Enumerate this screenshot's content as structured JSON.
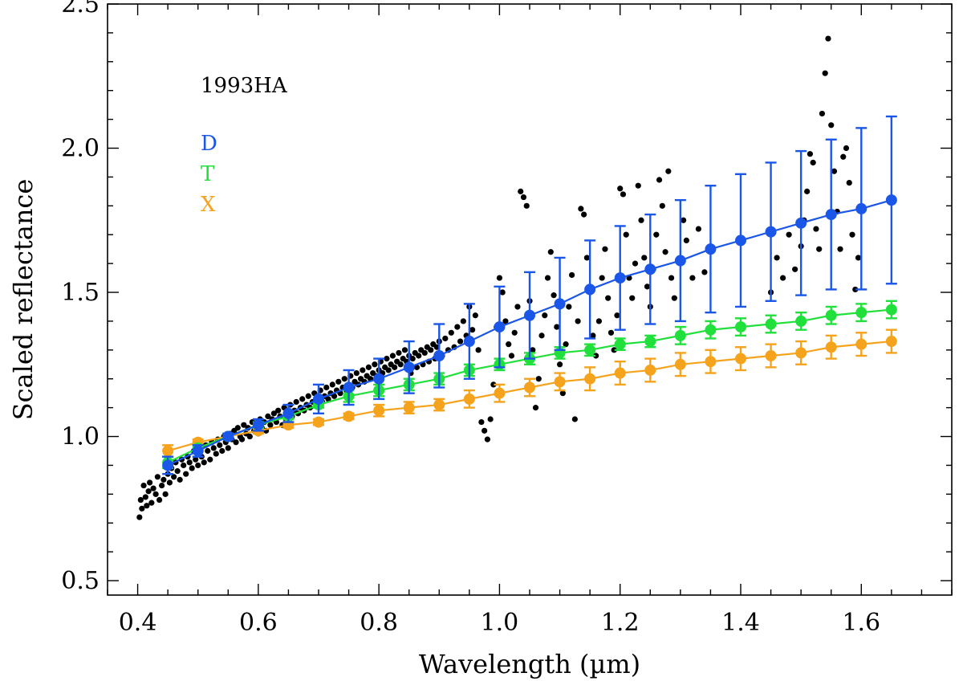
{
  "chart_data": {
    "type": "scatter",
    "title": "",
    "xlabel": "Wavelength (µm)",
    "ylabel": "Scaled reflectance",
    "xlim": [
      0.35,
      1.75
    ],
    "ylim": [
      0.45,
      2.5
    ],
    "x_ticks": [
      0.4,
      0.6,
      0.8,
      1.0,
      1.2,
      1.4,
      1.6
    ],
    "x_tick_labels": [
      "0.4",
      "0.6",
      "0.8",
      "1.0",
      "1.2",
      "1.4",
      "1.6"
    ],
    "y_ticks": [
      0.5,
      1.0,
      1.5,
      2.0,
      2.5
    ],
    "y_tick_labels": [
      "0.5",
      "1.0",
      "1.5",
      "2.0",
      "2.5"
    ],
    "object_label": "1993HA",
    "series": [
      {
        "name": "D",
        "color": "#1a56e8",
        "x": [
          0.45,
          0.5,
          0.55,
          0.6,
          0.65,
          0.7,
          0.75,
          0.8,
          0.85,
          0.9,
          0.95,
          1.0,
          1.05,
          1.1,
          1.15,
          1.2,
          1.25,
          1.3,
          1.35,
          1.4,
          1.45,
          1.5,
          1.55,
          1.6,
          1.65
        ],
        "y": [
          0.9,
          0.95,
          1.0,
          1.04,
          1.08,
          1.13,
          1.17,
          1.2,
          1.24,
          1.28,
          1.33,
          1.38,
          1.42,
          1.46,
          1.51,
          1.55,
          1.58,
          1.61,
          1.65,
          1.68,
          1.71,
          1.74,
          1.77,
          1.79,
          1.82
        ],
        "err": [
          0.03,
          0.02,
          0.01,
          0.02,
          0.03,
          0.05,
          0.06,
          0.07,
          0.09,
          0.11,
          0.13,
          0.14,
          0.15,
          0.16,
          0.17,
          0.18,
          0.19,
          0.21,
          0.22,
          0.23,
          0.24,
          0.25,
          0.26,
          0.28,
          0.29
        ]
      },
      {
        "name": "T",
        "color": "#22e03c",
        "x": [
          0.45,
          0.5,
          0.55,
          0.6,
          0.65,
          0.7,
          0.75,
          0.8,
          0.85,
          0.9,
          0.95,
          1.0,
          1.05,
          1.1,
          1.15,
          1.2,
          1.25,
          1.3,
          1.35,
          1.4,
          1.45,
          1.5,
          1.55,
          1.6,
          1.65
        ],
        "y": [
          0.91,
          0.96,
          1.0,
          1.04,
          1.07,
          1.11,
          1.14,
          1.16,
          1.18,
          1.2,
          1.23,
          1.25,
          1.27,
          1.29,
          1.3,
          1.32,
          1.33,
          1.35,
          1.37,
          1.38,
          1.39,
          1.4,
          1.42,
          1.43,
          1.44
        ],
        "err": [
          0.02,
          0.01,
          0.01,
          0.01,
          0.01,
          0.01,
          0.02,
          0.02,
          0.02,
          0.02,
          0.02,
          0.02,
          0.02,
          0.02,
          0.02,
          0.02,
          0.02,
          0.03,
          0.03,
          0.03,
          0.03,
          0.03,
          0.03,
          0.03,
          0.03
        ]
      },
      {
        "name": "X",
        "color": "#f5a31c",
        "x": [
          0.45,
          0.5,
          0.55,
          0.6,
          0.65,
          0.7,
          0.75,
          0.8,
          0.85,
          0.9,
          0.95,
          1.0,
          1.05,
          1.1,
          1.15,
          1.2,
          1.25,
          1.3,
          1.35,
          1.4,
          1.45,
          1.5,
          1.55,
          1.6,
          1.65
        ],
        "y": [
          0.95,
          0.98,
          1.0,
          1.02,
          1.04,
          1.05,
          1.07,
          1.09,
          1.1,
          1.11,
          1.13,
          1.15,
          1.17,
          1.19,
          1.2,
          1.22,
          1.23,
          1.25,
          1.26,
          1.27,
          1.28,
          1.29,
          1.31,
          1.32,
          1.33
        ],
        "err": [
          0.02,
          0.01,
          0.01,
          0.01,
          0.01,
          0.01,
          0.01,
          0.02,
          0.02,
          0.02,
          0.03,
          0.03,
          0.03,
          0.03,
          0.04,
          0.04,
          0.04,
          0.04,
          0.04,
          0.04,
          0.04,
          0.04,
          0.04,
          0.04,
          0.04
        ]
      }
    ],
    "observations": {
      "name": "1993HA",
      "color": "#000000",
      "points": [
        [
          0.403,
          0.72
        ],
        [
          0.405,
          0.78
        ],
        [
          0.407,
          0.75
        ],
        [
          0.41,
          0.83
        ],
        [
          0.413,
          0.79
        ],
        [
          0.415,
          0.76
        ],
        [
          0.418,
          0.81
        ],
        [
          0.42,
          0.84
        ],
        [
          0.423,
          0.77
        ],
        [
          0.426,
          0.82
        ],
        [
          0.43,
          0.8
        ],
        [
          0.433,
          0.86
        ],
        [
          0.436,
          0.78
        ],
        [
          0.44,
          0.83
        ],
        [
          0.443,
          0.85
        ],
        [
          0.446,
          0.8
        ],
        [
          0.45,
          0.87
        ],
        [
          0.453,
          0.84
        ],
        [
          0.456,
          0.89
        ],
        [
          0.46,
          0.86
        ],
        [
          0.463,
          0.91
        ],
        [
          0.466,
          0.88
        ],
        [
          0.47,
          0.85
        ],
        [
          0.473,
          0.92
        ],
        [
          0.476,
          0.9
        ],
        [
          0.48,
          0.87
        ],
        [
          0.483,
          0.93
        ],
        [
          0.486,
          0.91
        ],
        [
          0.49,
          0.89
        ],
        [
          0.493,
          0.95
        ],
        [
          0.496,
          0.92
        ],
        [
          0.5,
          0.9
        ],
        [
          0.503,
          0.96
        ],
        [
          0.506,
          0.93
        ],
        [
          0.51,
          0.91
        ],
        [
          0.513,
          0.97
        ],
        [
          0.516,
          0.95
        ],
        [
          0.52,
          0.92
        ],
        [
          0.523,
          0.98
        ],
        [
          0.526,
          0.96
        ],
        [
          0.53,
          0.94
        ],
        [
          0.533,
          0.99
        ],
        [
          0.536,
          0.97
        ],
        [
          0.54,
          0.95
        ],
        [
          0.543,
          1.0
        ],
        [
          0.546,
          0.98
        ],
        [
          0.55,
          0.96
        ],
        [
          0.553,
          1.01
        ],
        [
          0.556,
          0.99
        ],
        [
          0.56,
          1.02
        ],
        [
          0.563,
          0.98
        ],
        [
          0.566,
          1.03
        ],
        [
          0.57,
          1.0
        ],
        [
          0.573,
          0.99
        ],
        [
          0.576,
          1.04
        ],
        [
          0.58,
          1.01
        ],
        [
          0.583,
          1.03
        ],
        [
          0.586,
          1.0
        ],
        [
          0.59,
          1.05
        ],
        [
          0.593,
          1.02
        ],
        [
          0.596,
          1.04
        ],
        [
          0.6,
          1.01
        ],
        [
          0.603,
          1.06
        ],
        [
          0.606,
          1.03
        ],
        [
          0.61,
          1.05
        ],
        [
          0.613,
          1.02
        ],
        [
          0.616,
          1.07
        ],
        [
          0.62,
          1.04
        ],
        [
          0.623,
          1.06
        ],
        [
          0.626,
          1.08
        ],
        [
          0.63,
          1.05
        ],
        [
          0.633,
          1.09
        ],
        [
          0.636,
          1.07
        ],
        [
          0.64,
          1.04
        ],
        [
          0.643,
          1.1
        ],
        [
          0.646,
          1.06
        ],
        [
          0.65,
          1.08
        ],
        [
          0.653,
          1.11
        ],
        [
          0.656,
          1.07
        ],
        [
          0.66,
          1.09
        ],
        [
          0.663,
          1.12
        ],
        [
          0.666,
          1.08
        ],
        [
          0.67,
          1.1
        ],
        [
          0.673,
          1.13
        ],
        [
          0.676,
          1.09
        ],
        [
          0.68,
          1.11
        ],
        [
          0.683,
          1.14
        ],
        [
          0.686,
          1.1
        ],
        [
          0.69,
          1.12
        ],
        [
          0.693,
          1.15
        ],
        [
          0.696,
          1.11
        ],
        [
          0.7,
          1.13
        ],
        [
          0.703,
          1.16
        ],
        [
          0.706,
          1.12
        ],
        [
          0.71,
          1.14
        ],
        [
          0.713,
          1.17
        ],
        [
          0.716,
          1.13
        ],
        [
          0.72,
          1.15
        ],
        [
          0.723,
          1.18
        ],
        [
          0.726,
          1.14
        ],
        [
          0.73,
          1.16
        ],
        [
          0.733,
          1.19
        ],
        [
          0.736,
          1.15
        ],
        [
          0.74,
          1.17
        ],
        [
          0.743,
          1.2
        ],
        [
          0.746,
          1.16
        ],
        [
          0.75,
          1.18
        ],
        [
          0.753,
          1.21
        ],
        [
          0.756,
          1.17
        ],
        [
          0.76,
          1.19
        ],
        [
          0.763,
          1.22
        ],
        [
          0.766,
          1.18
        ],
        [
          0.77,
          1.2
        ],
        [
          0.773,
          1.23
        ],
        [
          0.776,
          1.19
        ],
        [
          0.78,
          1.21
        ],
        [
          0.783,
          1.24
        ],
        [
          0.786,
          1.2
        ],
        [
          0.79,
          1.22
        ],
        [
          0.793,
          1.25
        ],
        [
          0.796,
          1.21
        ],
        [
          0.8,
          1.23
        ],
        [
          0.803,
          1.26
        ],
        [
          0.806,
          1.22
        ],
        [
          0.81,
          1.24
        ],
        [
          0.813,
          1.27
        ],
        [
          0.816,
          1.23
        ],
        [
          0.82,
          1.25
        ],
        [
          0.823,
          1.28
        ],
        [
          0.826,
          1.24
        ],
        [
          0.83,
          1.26
        ],
        [
          0.833,
          1.29
        ],
        [
          0.836,
          1.25
        ],
        [
          0.84,
          1.27
        ],
        [
          0.843,
          1.3
        ],
        [
          0.846,
          1.26
        ],
        [
          0.85,
          1.28
        ],
        [
          0.853,
          1.22
        ],
        [
          0.856,
          1.27
        ],
        [
          0.86,
          1.29
        ],
        [
          0.863,
          1.24
        ],
        [
          0.866,
          1.28
        ],
        [
          0.87,
          1.3
        ],
        [
          0.873,
          1.25
        ],
        [
          0.876,
          1.29
        ],
        [
          0.88,
          1.31
        ],
        [
          0.883,
          1.26
        ],
        [
          0.886,
          1.3
        ],
        [
          0.89,
          1.32
        ],
        [
          0.893,
          1.27
        ],
        [
          0.896,
          1.31
        ],
        [
          0.9,
          1.33
        ],
        [
          0.905,
          1.28
        ],
        [
          0.91,
          1.34
        ],
        [
          0.915,
          1.3
        ],
        [
          0.92,
          1.36
        ],
        [
          0.925,
          1.31
        ],
        [
          0.93,
          1.38
        ],
        [
          0.935,
          1.33
        ],
        [
          0.94,
          1.4
        ],
        [
          0.945,
          1.35
        ],
        [
          0.95,
          1.45
        ],
        [
          0.955,
          1.37
        ],
        [
          0.96,
          1.42
        ],
        [
          0.965,
          1.3
        ],
        [
          0.97,
          1.05
        ],
        [
          0.975,
          1.02
        ],
        [
          0.98,
          0.99
        ],
        [
          0.985,
          1.06
        ],
        [
          0.99,
          1.18
        ],
        [
          0.995,
          1.38
        ],
        [
          1.0,
          1.55
        ],
        [
          1.005,
          1.5
        ],
        [
          1.01,
          1.4
        ],
        [
          1.015,
          1.32
        ],
        [
          1.02,
          1.28
        ],
        [
          1.025,
          1.36
        ],
        [
          1.03,
          1.45
        ],
        [
          1.035,
          1.85
        ],
        [
          1.04,
          1.83
        ],
        [
          1.045,
          1.8
        ],
        [
          1.05,
          1.47
        ],
        [
          1.055,
          1.3
        ],
        [
          1.06,
          1.1
        ],
        [
          1.065,
          1.2
        ],
        [
          1.07,
          1.35
        ],
        [
          1.075,
          1.42
        ],
        [
          1.08,
          1.55
        ],
        [
          1.085,
          1.64
        ],
        [
          1.09,
          1.49
        ],
        [
          1.095,
          1.38
        ],
        [
          1.1,
          1.25
        ],
        [
          1.105,
          1.15
        ],
        [
          1.11,
          1.32
        ],
        [
          1.115,
          1.45
        ],
        [
          1.12,
          1.56
        ],
        [
          1.125,
          1.06
        ],
        [
          1.13,
          1.4
        ],
        [
          1.135,
          1.79
        ],
        [
          1.14,
          1.77
        ],
        [
          1.145,
          1.62
        ],
        [
          1.15,
          1.5
        ],
        [
          1.155,
          1.35
        ],
        [
          1.16,
          1.28
        ],
        [
          1.165,
          1.4
        ],
        [
          1.17,
          1.55
        ],
        [
          1.175,
          1.65
        ],
        [
          1.18,
          1.48
        ],
        [
          1.185,
          1.36
        ],
        [
          1.19,
          1.3
        ],
        [
          1.195,
          1.42
        ],
        [
          1.2,
          1.86
        ],
        [
          1.205,
          1.84
        ],
        [
          1.21,
          1.7
        ],
        [
          1.215,
          1.55
        ],
        [
          1.22,
          1.48
        ],
        [
          1.225,
          1.6
        ],
        [
          1.23,
          1.87
        ],
        [
          1.235,
          1.75
        ],
        [
          1.24,
          1.62
        ],
        [
          1.245,
          1.52
        ],
        [
          1.25,
          1.45
        ],
        [
          1.255,
          1.58
        ],
        [
          1.26,
          1.7
        ],
        [
          1.265,
          1.89
        ],
        [
          1.27,
          1.8
        ],
        [
          1.275,
          1.64
        ],
        [
          1.28,
          1.92
        ],
        [
          1.285,
          1.55
        ],
        [
          1.29,
          1.48
        ],
        [
          1.3,
          1.6
        ],
        [
          1.305,
          1.75
        ],
        [
          1.31,
          1.68
        ],
        [
          1.32,
          1.55
        ],
        [
          1.33,
          1.72
        ],
        [
          1.34,
          1.57
        ],
        [
          1.45,
          1.5
        ],
        [
          1.46,
          1.62
        ],
        [
          1.47,
          1.55
        ],
        [
          1.48,
          1.7
        ],
        [
          1.49,
          1.58
        ],
        [
          1.5,
          1.66
        ],
        [
          1.505,
          1.75
        ],
        [
          1.51,
          1.85
        ],
        [
          1.515,
          1.98
        ],
        [
          1.52,
          1.95
        ],
        [
          1.525,
          1.72
        ],
        [
          1.53,
          1.65
        ],
        [
          1.535,
          2.12
        ],
        [
          1.54,
          2.26
        ],
        [
          1.545,
          2.38
        ],
        [
          1.55,
          2.08
        ],
        [
          1.555,
          1.92
        ],
        [
          1.56,
          1.78
        ],
        [
          1.565,
          1.65
        ],
        [
          1.57,
          1.97
        ],
        [
          1.575,
          2.0
        ],
        [
          1.58,
          1.88
        ],
        [
          1.585,
          1.7
        ],
        [
          1.59,
          1.51
        ],
        [
          1.595,
          1.62
        ]
      ]
    }
  }
}
